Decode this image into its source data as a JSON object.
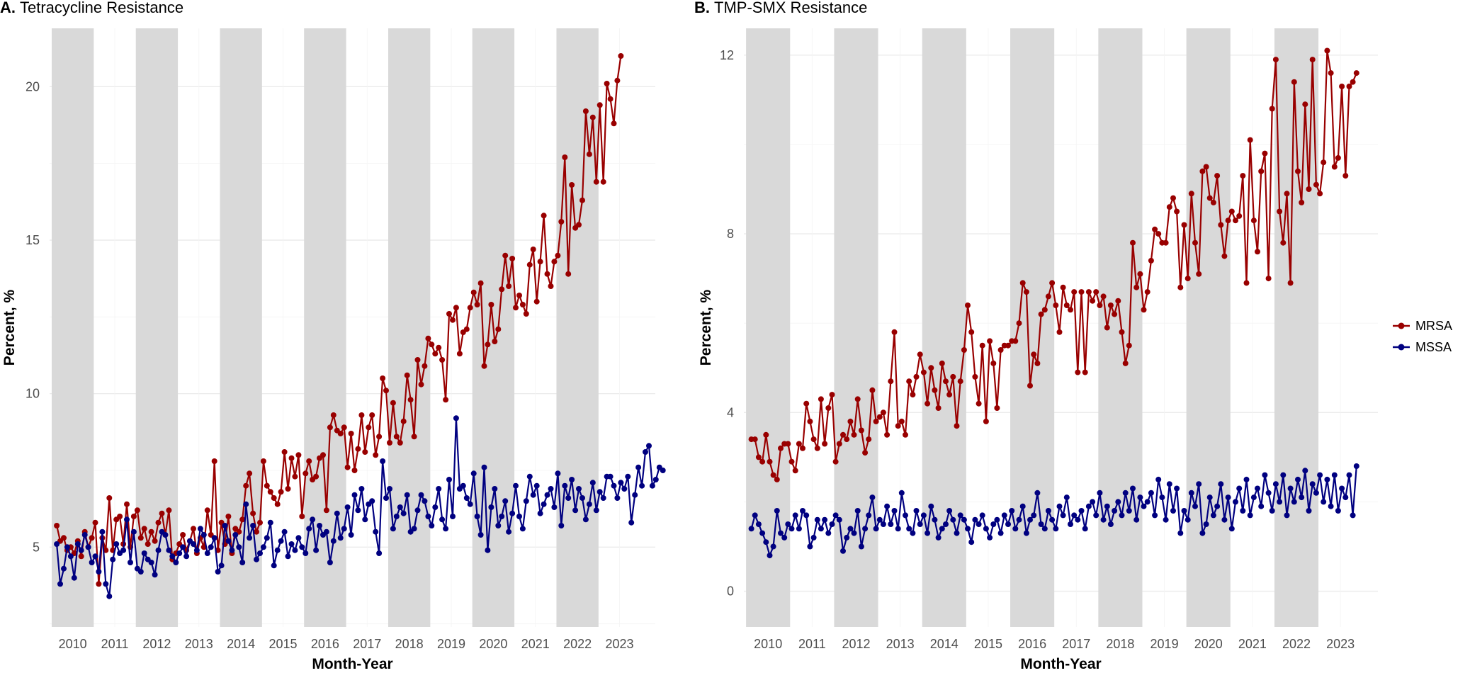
{
  "legend": [
    {
      "name": "MRSA",
      "color": "#990000"
    },
    {
      "name": "MSSA",
      "color": "#000080"
    }
  ],
  "chart_data": [
    {
      "type": "line",
      "id": "A",
      "title_prefix": "A.",
      "title": "Tetracycline Resistance",
      "xlabel": "Month-Year",
      "ylabel": "Percent, %",
      "xlim": [
        2009.45,
        2023.85
      ],
      "ylim": [
        2.4,
        21.9
      ],
      "yticks": [
        5,
        10,
        15,
        20
      ],
      "ytick_labels": [
        "5",
        "10",
        "15",
        "20"
      ],
      "xticks": [
        2010,
        2011,
        2012,
        2013,
        2014,
        2015,
        2016,
        2017,
        2018,
        2019,
        2020,
        2021,
        2022,
        2023
      ],
      "xtick_labels": [
        "2010",
        "2011",
        "2012",
        "2013",
        "2014",
        "2015",
        "2016",
        "2017",
        "2018",
        "2019",
        "2020",
        "2021",
        "2022",
        "2023"
      ],
      "shaded_years": [
        2010,
        2012,
        2014,
        2016,
        2018,
        2020,
        2022
      ],
      "x_start": 2009.62,
      "x_step": 0.0833,
      "series": [
        {
          "name": "MRSA",
          "values": [
            5.7,
            5.2,
            5.3,
            4.9,
            5.0,
            4.8,
            5.2,
            4.7,
            5.5,
            5.0,
            5.3,
            5.8,
            3.8,
            5.3,
            4.9,
            6.6,
            4.9,
            5.9,
            6.0,
            5.1,
            6.4,
            5.0,
            6.0,
            6.2,
            5.3,
            5.6,
            5.1,
            5.5,
            5.2,
            5.8,
            6.1,
            5.4,
            6.2,
            4.6,
            4.8,
            5.1,
            5.4,
            4.9,
            5.2,
            5.6,
            4.8,
            5.3,
            5.0,
            6.2,
            5.4,
            7.8,
            4.9,
            5.8,
            5.1,
            6.0,
            4.8,
            5.6,
            5.5,
            5.9,
            7.0,
            7.4,
            6.1,
            5.5,
            5.8,
            7.8,
            7.0,
            6.8,
            6.6,
            6.4,
            6.8,
            8.1,
            6.9,
            7.9,
            7.3,
            8.0,
            6.0,
            7.4,
            7.8,
            7.2,
            7.3,
            7.9,
            8.0,
            6.2,
            8.9,
            9.3,
            8.8,
            8.7,
            8.9,
            7.6,
            8.7,
            7.5,
            8.2,
            9.3,
            8.1,
            8.9,
            9.3,
            8.0,
            8.6,
            10.5,
            10.1,
            8.4,
            9.7,
            8.6,
            8.4,
            9.1,
            10.6,
            9.8,
            8.6,
            11.1,
            10.3,
            10.9,
            11.8,
            11.6,
            11.3,
            11.5,
            11.1,
            9.8,
            12.6,
            12.4,
            12.8,
            11.3,
            12.0,
            12.1,
            12.8,
            13.3,
            12.9,
            13.6,
            10.9,
            11.6,
            12.9,
            11.7,
            12.1,
            13.4,
            14.5,
            13.5,
            14.4,
            12.8,
            13.2,
            12.9,
            12.6,
            14.2,
            14.7,
            13.0,
            14.3,
            15.8,
            13.9,
            13.5,
            14.3,
            14.5,
            15.6,
            17.7,
            13.9,
            16.8,
            15.4,
            15.5,
            16.3,
            19.2,
            17.8,
            19.0,
            16.9,
            19.4,
            16.9,
            20.1,
            19.6,
            18.8,
            20.2,
            21.0
          ]
        },
        {
          "name": "MSSA",
          "values": [
            5.1,
            3.8,
            4.3,
            5.0,
            4.7,
            4.0,
            5.1,
            4.9,
            5.4,
            5.0,
            4.5,
            4.7,
            4.2,
            5.5,
            3.8,
            3.4,
            4.6,
            5.1,
            4.8,
            4.9,
            5.9,
            4.5,
            5.5,
            4.3,
            4.2,
            4.8,
            4.6,
            4.5,
            4.1,
            4.9,
            5.5,
            5.4,
            4.9,
            4.7,
            4.5,
            4.8,
            5.0,
            4.7,
            5.2,
            5.1,
            4.9,
            5.6,
            5.4,
            4.8,
            5.0,
            5.3,
            4.2,
            4.4,
            5.7,
            5.2,
            4.9,
            5.4,
            5.0,
            4.5,
            6.4,
            5.3,
            5.7,
            4.6,
            4.8,
            5.0,
            5.3,
            5.8,
            4.4,
            4.9,
            5.2,
            5.5,
            4.7,
            5.1,
            4.9,
            5.3,
            5.0,
            4.8,
            5.6,
            5.9,
            4.9,
            5.7,
            5.4,
            5.5,
            4.5,
            5.2,
            6.1,
            5.3,
            5.6,
            6.3,
            5.4,
            6.7,
            6.2,
            6.9,
            5.9,
            6.4,
            6.5,
            5.5,
            4.8,
            7.8,
            6.6,
            6.9,
            5.6,
            6.0,
            6.3,
            6.1,
            6.7,
            5.5,
            5.6,
            6.2,
            6.7,
            6.5,
            6.0,
            5.7,
            6.3,
            6.9,
            5.9,
            5.6,
            7.2,
            6.0,
            9.2,
            6.9,
            7.0,
            6.6,
            6.4,
            7.4,
            6.0,
            5.4,
            7.6,
            4.9,
            6.3,
            6.9,
            5.7,
            6.0,
            6.5,
            5.5,
            6.1,
            7.0,
            6.0,
            5.6,
            6.5,
            7.3,
            6.7,
            7.0,
            6.1,
            6.4,
            6.7,
            6.9,
            6.3,
            7.4,
            5.7,
            7.0,
            6.6,
            7.2,
            6.2,
            6.9,
            6.6,
            5.9,
            6.4,
            7.1,
            6.2,
            6.8,
            6.6,
            7.3,
            7.3,
            7.0,
            6.6,
            7.1,
            6.9,
            7.3,
            5.8,
            6.7,
            7.6,
            7.0,
            8.1,
            8.3,
            7.0,
            7.2,
            7.6,
            7.5
          ]
        }
      ]
    },
    {
      "type": "line",
      "id": "B",
      "title_prefix": "B.",
      "title": "TMP-SMX Resistance",
      "xlabel": "Month-Year",
      "ylabel": "Percent, %",
      "xlim": [
        2009.45,
        2023.85
      ],
      "ylim": [
        -0.8,
        12.6
      ],
      "yticks": [
        0,
        4,
        8,
        12
      ],
      "ytick_labels": [
        "0",
        "4",
        "8",
        "12"
      ],
      "xticks": [
        2010,
        2011,
        2012,
        2013,
        2014,
        2015,
        2016,
        2017,
        2018,
        2019,
        2020,
        2021,
        2022,
        2023
      ],
      "xtick_labels": [
        "2010",
        "2011",
        "2012",
        "2013",
        "2014",
        "2015",
        "2016",
        "2017",
        "2018",
        "2019",
        "2020",
        "2021",
        "2022",
        "2023"
      ],
      "shaded_years": [
        2010,
        2012,
        2014,
        2016,
        2018,
        2020,
        2022
      ],
      "x_start": 2009.62,
      "x_step": 0.0833,
      "series": [
        {
          "name": "MRSA",
          "values": [
            3.4,
            3.4,
            3.0,
            2.9,
            3.5,
            2.9,
            2.6,
            2.5,
            3.2,
            3.3,
            3.3,
            2.9,
            2.7,
            3.3,
            3.2,
            4.2,
            3.8,
            3.4,
            3.2,
            4.3,
            3.3,
            4.1,
            4.4,
            2.9,
            3.3,
            3.5,
            3.4,
            3.8,
            3.5,
            4.3,
            3.6,
            3.1,
            3.4,
            4.5,
            3.8,
            3.9,
            4.0,
            3.5,
            4.7,
            5.8,
            3.7,
            3.8,
            3.5,
            4.7,
            4.4,
            4.8,
            5.3,
            4.9,
            4.2,
            5.0,
            4.5,
            4.1,
            5.1,
            4.7,
            4.4,
            4.8,
            3.7,
            4.7,
            5.4,
            6.4,
            5.8,
            4.8,
            4.2,
            5.5,
            3.8,
            5.6,
            5.1,
            4.1,
            5.4,
            5.5,
            5.5,
            5.6,
            5.6,
            6.0,
            6.9,
            6.7,
            4.6,
            5.3,
            5.1,
            6.2,
            6.3,
            6.6,
            6.9,
            6.4,
            5.8,
            6.8,
            6.4,
            6.3,
            6.7,
            4.9,
            6.7,
            4.9,
            6.7,
            6.5,
            6.7,
            6.4,
            6.6,
            5.9,
            6.4,
            6.2,
            6.5,
            5.8,
            5.1,
            5.5,
            7.8,
            6.8,
            7.1,
            6.3,
            6.7,
            7.4,
            8.1,
            8.0,
            7.8,
            7.8,
            8.6,
            8.8,
            8.5,
            6.8,
            8.2,
            7.0,
            8.9,
            7.8,
            7.1,
            9.4,
            9.5,
            8.8,
            8.7,
            9.3,
            8.2,
            7.5,
            8.3,
            8.5,
            8.3,
            8.4,
            9.3,
            6.9,
            10.1,
            8.3,
            7.6,
            9.4,
            9.8,
            7.0,
            10.8,
            11.9,
            8.5,
            7.8,
            8.9,
            6.9,
            11.4,
            9.4,
            8.7,
            10.9,
            9.0,
            11.9,
            9.1,
            8.9,
            9.6,
            12.1,
            11.6,
            9.5,
            9.7,
            11.3,
            9.3,
            11.3,
            11.4,
            11.6
          ]
        },
        {
          "name": "MSSA",
          "values": [
            1.4,
            1.7,
            1.5,
            1.3,
            1.1,
            0.8,
            1.0,
            1.8,
            1.3,
            1.2,
            1.5,
            1.4,
            1.7,
            1.4,
            1.8,
            1.7,
            1.0,
            1.2,
            1.6,
            1.4,
            1.6,
            1.3,
            1.5,
            1.7,
            1.6,
            0.9,
            1.2,
            1.4,
            1.3,
            1.8,
            1.0,
            1.4,
            1.7,
            2.1,
            1.4,
            1.6,
            1.5,
            1.9,
            1.5,
            1.8,
            1.4,
            2.2,
            1.7,
            1.4,
            1.3,
            1.8,
            1.5,
            1.7,
            1.3,
            1.9,
            1.6,
            1.2,
            1.4,
            1.5,
            1.8,
            1.6,
            1.3,
            1.7,
            1.6,
            1.4,
            1.1,
            1.6,
            1.5,
            1.7,
            1.4,
            1.2,
            1.5,
            1.6,
            1.3,
            1.7,
            1.5,
            1.8,
            1.4,
            1.6,
            1.9,
            1.3,
            1.6,
            1.7,
            2.2,
            1.5,
            1.4,
            1.8,
            1.6,
            1.4,
            1.9,
            1.7,
            2.1,
            1.5,
            1.7,
            1.6,
            1.8,
            1.4,
            1.9,
            2.0,
            1.7,
            2.2,
            1.6,
            1.9,
            1.5,
            1.8,
            2.0,
            1.7,
            2.2,
            1.8,
            2.3,
            1.6,
            2.1,
            1.9,
            2.0,
            2.2,
            1.7,
            2.5,
            2.1,
            1.6,
            2.4,
            1.8,
            2.3,
            1.3,
            1.8,
            1.6,
            2.2,
            1.9,
            2.4,
            1.3,
            1.5,
            2.1,
            1.7,
            1.9,
            2.4,
            1.6,
            2.1,
            1.4,
            2.0,
            2.3,
            1.8,
            2.5,
            1.7,
            2.1,
            2.3,
            1.9,
            2.6,
            2.2,
            1.8,
            2.4,
            2.0,
            2.6,
            1.7,
            2.3,
            2.0,
            2.5,
            2.1,
            2.7,
            1.8,
            2.4,
            2.2,
            2.6,
            2.0,
            2.5,
            1.9,
            2.6,
            1.8,
            2.3,
            2.1,
            2.6,
            1.7,
            2.8
          ]
        }
      ]
    }
  ]
}
